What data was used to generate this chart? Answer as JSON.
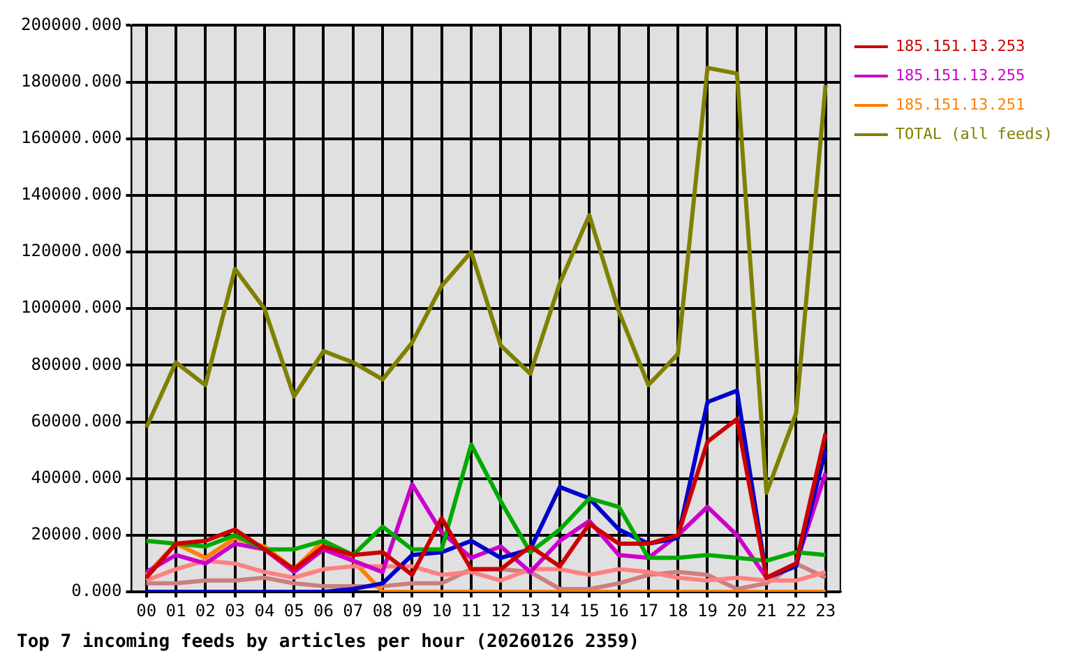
{
  "chart_data": {
    "type": "line",
    "title": "Top 7 incoming feeds by articles per hour (20260126 2359)",
    "categories": [
      "00",
      "01",
      "02",
      "03",
      "04",
      "05",
      "06",
      "07",
      "08",
      "09",
      "10",
      "11",
      "12",
      "13",
      "14",
      "15",
      "16",
      "17",
      "18",
      "19",
      "20",
      "21",
      "22",
      "23"
    ],
    "series": [
      {
        "name": "185.151.13.253",
        "color": "#cc0000",
        "values": [
          5000,
          17000,
          18000,
          22000,
          15000,
          8000,
          16000,
          13000,
          14000,
          6000,
          26000,
          8000,
          8000,
          16000,
          9000,
          24000,
          17000,
          17000,
          20000,
          53000,
          61000,
          5000,
          10000,
          56000
        ]
      },
      {
        "color": "#00aa00",
        "values": [
          18000,
          17000,
          16000,
          20000,
          15000,
          15000,
          18000,
          13000,
          23000,
          15000,
          15000,
          52000,
          32000,
          14000,
          22000,
          33000,
          30000,
          12000,
          12000,
          13000,
          12000,
          11000,
          14000,
          13000
        ]
      },
      {
        "color": "#0000cc",
        "values": [
          0,
          0,
          0,
          0,
          0,
          0,
          0,
          1000,
          3000,
          13000,
          14000,
          18000,
          12000,
          15000,
          37000,
          33000,
          22000,
          17000,
          19000,
          67000,
          71000,
          5000,
          9000,
          50000
        ]
      },
      {
        "name": "185.151.13.255",
        "color": "#cc00cc",
        "values": [
          7000,
          13000,
          10000,
          17000,
          15000,
          7000,
          15000,
          11000,
          7000,
          38000,
          21000,
          12000,
          16000,
          7000,
          18000,
          25000,
          13000,
          12000,
          20000,
          30000,
          20000,
          5000,
          10000,
          42000
        ]
      },
      {
        "color": "#ff8080",
        "values": [
          4000,
          8000,
          11000,
          10000,
          7000,
          5000,
          8000,
          9000,
          9000,
          9000,
          6000,
          7000,
          4000,
          8000,
          8000,
          6000,
          8000,
          7000,
          5000,
          4000,
          5000,
          4000,
          4000,
          7000
        ]
      },
      {
        "name": "185.151.13.251",
        "color": "#ff8000",
        "values": [
          6000,
          17000,
          12000,
          19000,
          16000,
          8000,
          18000,
          11000,
          0,
          0,
          0,
          0,
          0,
          0,
          0,
          0,
          0,
          0,
          0,
          0,
          0,
          0,
          0,
          0
        ]
      },
      {
        "color": "#cc7f7f",
        "values": [
          3000,
          3000,
          4000,
          4000,
          5000,
          3000,
          2000,
          2000,
          2000,
          3000,
          3000,
          8000,
          8000,
          7000,
          1000,
          1000,
          3000,
          6000,
          7000,
          6000,
          1000,
          3000,
          10000,
          5000
        ]
      },
      {
        "name": "TOTAL (all feeds)",
        "color": "#808000",
        "values": [
          58000,
          81000,
          73000,
          114000,
          100000,
          69000,
          85000,
          81000,
          75000,
          88000,
          108000,
          120000,
          87000,
          77000,
          109000,
          133000,
          99000,
          73000,
          84000,
          185000,
          183000,
          35000,
          63000,
          179000
        ]
      }
    ],
    "ylim": [
      0,
      200000
    ],
    "yticks": [
      {
        "value": 0,
        "label": "0.000"
      },
      {
        "value": 20000,
        "label": "20000.000"
      },
      {
        "value": 40000,
        "label": "40000.000"
      },
      {
        "value": 60000,
        "label": "60000.000"
      },
      {
        "value": 80000,
        "label": "80000.000"
      },
      {
        "value": 100000,
        "label": "100000.000"
      },
      {
        "value": 120000,
        "label": "120000.000"
      },
      {
        "value": 140000,
        "label": "140000.000"
      },
      {
        "value": 160000,
        "label": "160000.000"
      },
      {
        "value": 180000,
        "label": "180000.000"
      },
      {
        "value": 200000,
        "label": "200000.000"
      }
    ],
    "grid": true,
    "legend": "right",
    "marker": "none",
    "line_style": "solid"
  }
}
